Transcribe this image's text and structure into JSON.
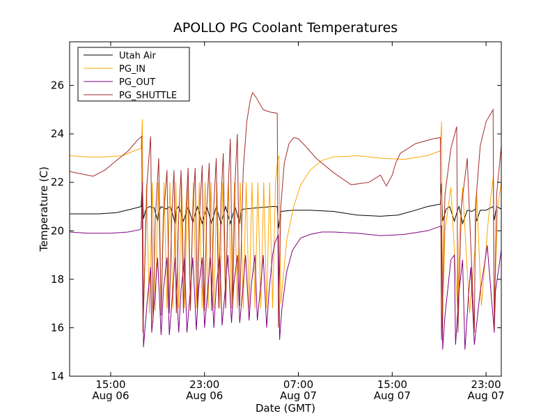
{
  "chart_data": {
    "type": "line",
    "title": "APOLLO PG Coolant Temperatures",
    "xlabel": "Date (GMT)",
    "ylabel": "Temperature (C)",
    "xlim": [
      11.5,
      48.3
    ],
    "ylim": [
      14,
      27.8
    ],
    "grid": false,
    "legend_position": "top-left",
    "x_unit": "hours since Aug 06 00:00 GMT",
    "xticks": [
      {
        "value": 15,
        "line1": "15:00",
        "line2": "Aug 06"
      },
      {
        "value": 23,
        "line1": "23:00",
        "line2": "Aug 06"
      },
      {
        "value": 31,
        "line1": "07:00",
        "line2": "Aug 07"
      },
      {
        "value": 39,
        "line1": "15:00",
        "line2": "Aug 07"
      },
      {
        "value": 47,
        "line1": "23:00",
        "line2": "Aug 07"
      }
    ],
    "yticks": [
      14,
      16,
      18,
      20,
      22,
      24,
      26
    ],
    "series": [
      {
        "name": "Utah Air",
        "color": "#000000",
        "x": [
          11.5,
          12.8,
          14.0,
          15.5,
          16.8,
          17.6,
          17.7,
          17.8,
          18.0,
          18.3,
          18.7,
          19.0,
          19.1,
          19.3,
          19.7,
          20.1,
          20.5,
          20.6,
          20.8,
          21.2,
          21.6,
          22.0,
          22.4,
          22.8,
          23.2,
          23.6,
          24.0,
          24.4,
          24.8,
          25.2,
          25.6,
          26.0,
          26.1,
          26.4,
          27.5,
          28.8,
          29.2,
          29.3,
          29.5,
          30.5,
          32.0,
          34.0,
          36.0,
          38.0,
          39.5,
          41.0,
          42.0,
          43.1,
          43.2,
          43.3,
          43.6,
          43.9,
          44.3,
          44.6,
          44.7,
          45.0,
          45.4,
          45.8,
          46.1,
          46.2,
          46.5,
          47.0,
          47.6,
          47.7,
          47.9,
          48.3
        ],
        "y": [
          20.7,
          20.7,
          20.7,
          20.75,
          20.9,
          21.0,
          22.0,
          20.5,
          20.9,
          21.0,
          20.95,
          20.4,
          20.8,
          21.0,
          20.9,
          21.0,
          20.3,
          20.9,
          21.0,
          20.4,
          21.0,
          20.35,
          21.0,
          20.3,
          21.0,
          20.3,
          21.0,
          20.3,
          21.0,
          20.3,
          21.0,
          20.3,
          20.85,
          20.9,
          20.95,
          21.0,
          21.0,
          20.1,
          20.8,
          20.85,
          20.85,
          20.8,
          20.65,
          20.6,
          20.65,
          20.85,
          21.0,
          21.1,
          21.95,
          20.4,
          20.9,
          21.0,
          20.4,
          20.9,
          21.0,
          20.3,
          20.85,
          20.8,
          20.9,
          20.4,
          20.85,
          20.85,
          21.0,
          20.45,
          21.0,
          20.9
        ]
      },
      {
        "name": "PG_IN",
        "color": "#ffa500",
        "x": [
          11.5,
          13.0,
          14.5,
          16.0,
          17.0,
          17.6,
          17.7,
          17.8,
          18.05,
          18.3,
          18.55,
          18.8,
          19.05,
          19.3,
          19.55,
          19.8,
          20.05,
          20.3,
          20.55,
          20.8,
          21.05,
          21.3,
          21.55,
          21.8,
          22.05,
          22.3,
          22.55,
          22.8,
          23.05,
          23.3,
          23.55,
          23.8,
          24.05,
          24.3,
          24.55,
          24.8,
          25.05,
          25.3,
          25.55,
          25.8,
          26.05,
          26.3,
          26.55,
          26.8,
          27.05,
          27.3,
          27.55,
          27.8,
          28.05,
          28.3,
          28.55,
          28.8,
          29.05,
          29.25,
          29.35,
          29.5,
          30.0,
          30.6,
          31.2,
          32.0,
          33.0,
          34.0,
          36.0,
          38.0,
          40.0,
          42.0,
          43.1,
          43.2,
          43.3,
          43.5,
          44.0,
          44.6,
          44.7,
          45.0,
          45.6,
          46.1,
          46.2,
          46.6,
          47.2,
          47.6,
          47.7,
          48.0,
          48.3
        ],
        "y": [
          23.1,
          23.05,
          23.05,
          23.1,
          23.3,
          23.4,
          24.6,
          16.5,
          21.9,
          16.6,
          22.0,
          16.7,
          22.0,
          16.8,
          22.0,
          16.8,
          22.0,
          16.8,
          22.0,
          16.8,
          22.0,
          16.8,
          22.0,
          16.8,
          22.0,
          16.8,
          22.0,
          16.8,
          22.0,
          16.8,
          22.0,
          16.8,
          22.0,
          16.8,
          22.0,
          16.8,
          22.0,
          16.8,
          22.0,
          16.8,
          22.0,
          16.8,
          22.0,
          16.8,
          22.0,
          16.8,
          22.0,
          16.8,
          22.0,
          16.8,
          22.0,
          16.8,
          22.0,
          23.0,
          23.1,
          17.0,
          19.6,
          21.0,
          21.9,
          22.5,
          22.9,
          23.05,
          23.1,
          23.0,
          22.95,
          23.1,
          23.3,
          24.5,
          16.0,
          20.0,
          21.8,
          16.5,
          19.5,
          21.8,
          16.6,
          19.5,
          21.6,
          16.9,
          20.5,
          22.2,
          16.8,
          21.0,
          22.0
        ]
      },
      {
        "name": "PG_OUT",
        "color": "#800080",
        "x": [
          11.5,
          13.0,
          15.0,
          16.5,
          17.5,
          17.6,
          17.7,
          17.8,
          18.1,
          18.4,
          18.5,
          18.8,
          19.0,
          19.3,
          19.5,
          19.8,
          20.0,
          20.3,
          20.5,
          20.8,
          21.0,
          21.3,
          21.5,
          21.8,
          22.0,
          22.3,
          22.5,
          22.8,
          23.0,
          23.3,
          23.5,
          23.8,
          24.0,
          24.3,
          24.5,
          24.8,
          25.0,
          25.3,
          25.5,
          25.8,
          26.0,
          26.3,
          26.5,
          26.8,
          27.0,
          27.3,
          27.5,
          27.8,
          28.0,
          28.3,
          28.5,
          28.8,
          29.0,
          29.3,
          29.4,
          29.6,
          30.0,
          30.5,
          31.2,
          32.0,
          33.0,
          34.0,
          36.0,
          38.0,
          40.0,
          42.0,
          43.2,
          43.3,
          43.5,
          44.0,
          44.3,
          44.4,
          44.7,
          45.0,
          45.2,
          45.5,
          45.7,
          46.0,
          46.5,
          46.9,
          47.1,
          47.7,
          47.8,
          48.3
        ],
        "y": [
          19.95,
          19.9,
          19.9,
          19.95,
          20.05,
          20.1,
          22.0,
          15.2,
          17.0,
          18.5,
          15.8,
          17.5,
          18.9,
          15.7,
          17.6,
          18.9,
          15.7,
          17.6,
          18.9,
          15.8,
          17.6,
          18.9,
          15.8,
          17.6,
          18.9,
          15.9,
          17.6,
          18.9,
          16.0,
          17.7,
          18.9,
          16.0,
          17.7,
          19.0,
          16.1,
          17.8,
          19.0,
          16.2,
          17.8,
          19.0,
          16.2,
          17.8,
          19.0,
          16.3,
          17.8,
          19.0,
          16.3,
          17.8,
          19.0,
          16.0,
          17.5,
          19.0,
          19.5,
          19.85,
          15.5,
          16.8,
          18.3,
          19.2,
          19.7,
          19.85,
          19.95,
          19.95,
          19.9,
          19.8,
          19.85,
          20.0,
          20.2,
          15.1,
          16.5,
          18.8,
          19.0,
          15.3,
          17.5,
          18.8,
          15.1,
          17.3,
          18.5,
          15.3,
          17.5,
          18.7,
          19.4,
          15.8,
          17.5,
          19.2
        ]
      },
      {
        "name": "PG_SHUTTLE",
        "color": "#a52a2a",
        "x": [
          11.5,
          12.5,
          13.5,
          14.5,
          15.5,
          16.5,
          17.3,
          17.65,
          17.75,
          18.1,
          18.4,
          18.6,
          18.8,
          19.1,
          19.3,
          19.5,
          19.8,
          20.0,
          20.2,
          20.4,
          20.6,
          20.8,
          21.0,
          21.2,
          21.4,
          21.6,
          21.8,
          22.0,
          22.2,
          22.4,
          22.6,
          22.8,
          23.0,
          23.2,
          23.4,
          23.6,
          23.8,
          24.0,
          24.2,
          24.4,
          24.6,
          24.8,
          25.0,
          25.2,
          25.4,
          25.6,
          25.8,
          26.0,
          26.3,
          26.6,
          26.9,
          27.1,
          27.4,
          28.0,
          28.6,
          29.2,
          29.3,
          29.5,
          29.8,
          30.2,
          30.6,
          31.0,
          31.6,
          32.5,
          34.0,
          35.5,
          37.0,
          38.0,
          38.5,
          39.0,
          39.3,
          39.7,
          41.0,
          42.5,
          43.1,
          43.2,
          43.5,
          44.0,
          44.5,
          44.6,
          44.9,
          45.4,
          46.0,
          46.1,
          46.5,
          47.0,
          47.6,
          47.7,
          47.9,
          48.3
        ],
        "y": [
          22.45,
          22.35,
          22.25,
          22.5,
          22.9,
          23.3,
          23.75,
          23.9,
          15.8,
          22.0,
          23.9,
          16.2,
          20.5,
          23.0,
          16.5,
          20.5,
          22.5,
          16.6,
          20.5,
          22.5,
          16.6,
          20.6,
          22.5,
          16.6,
          20.7,
          22.6,
          16.7,
          20.8,
          22.6,
          16.7,
          20.9,
          22.7,
          16.7,
          21.0,
          22.8,
          16.7,
          21.1,
          23.0,
          16.8,
          21.2,
          23.2,
          16.8,
          21.5,
          23.8,
          16.8,
          22.0,
          24.0,
          16.9,
          22.5,
          24.5,
          25.4,
          25.7,
          25.5,
          25.0,
          24.9,
          24.85,
          16.0,
          21.0,
          22.8,
          23.6,
          23.85,
          23.8,
          23.5,
          23.0,
          22.4,
          21.9,
          22.0,
          22.3,
          21.85,
          22.3,
          22.8,
          23.2,
          23.6,
          23.8,
          23.85,
          15.5,
          21.5,
          23.4,
          24.3,
          15.8,
          21.0,
          23.0,
          15.8,
          21.0,
          23.5,
          24.5,
          25.0,
          15.9,
          21.5,
          23.5
        ]
      }
    ]
  }
}
